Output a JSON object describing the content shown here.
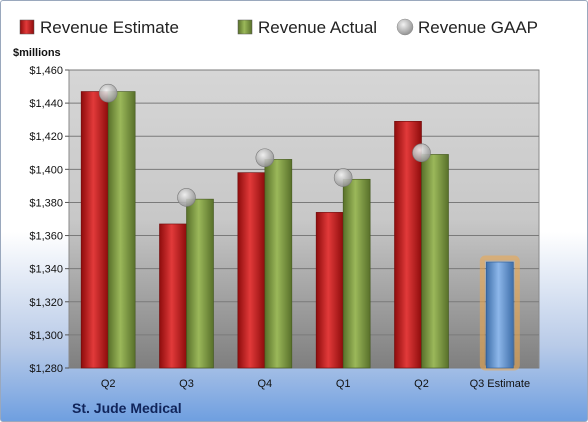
{
  "chart_data": {
    "type": "bar",
    "title": "",
    "ylabel": "$millions",
    "xlabel": "",
    "company": "St. Jude Medical",
    "categories": [
      "Q2",
      "Q3",
      "Q4",
      "Q1",
      "Q2",
      "Q3 Estimate"
    ],
    "ylim": [
      1280,
      1460
    ],
    "yticks": [
      1280,
      1300,
      1320,
      1340,
      1360,
      1380,
      1400,
      1420,
      1440,
      1460
    ],
    "ytick_labels": [
      "$1,280",
      "$1,300",
      "$1,320",
      "$1,340",
      "$1,360",
      "$1,380",
      "$1,400",
      "$1,420",
      "$1,440",
      "$1,460"
    ],
    "grid": true,
    "legend_position": "top",
    "series": [
      {
        "name": "Revenue Estimate",
        "kind": "bar",
        "color": "#cc1f1f",
        "values": [
          1447,
          1367,
          1398,
          1374,
          1429,
          null
        ]
      },
      {
        "name": "Revenue Actual",
        "kind": "bar",
        "color": "#7f9d3e",
        "values": [
          1447,
          1382,
          1406,
          1394,
          1409,
          null
        ]
      },
      {
        "name": "Revenue GAAP",
        "kind": "marker",
        "color": "#a9a9a9",
        "values": [
          1446,
          1383,
          1407,
          1395,
          1410,
          null
        ]
      },
      {
        "name": "Q3 Estimate",
        "kind": "bar",
        "color": "#6f9fd8",
        "highlight": "#f0a848",
        "values": [
          null,
          null,
          null,
          null,
          null,
          1344
        ]
      }
    ]
  }
}
